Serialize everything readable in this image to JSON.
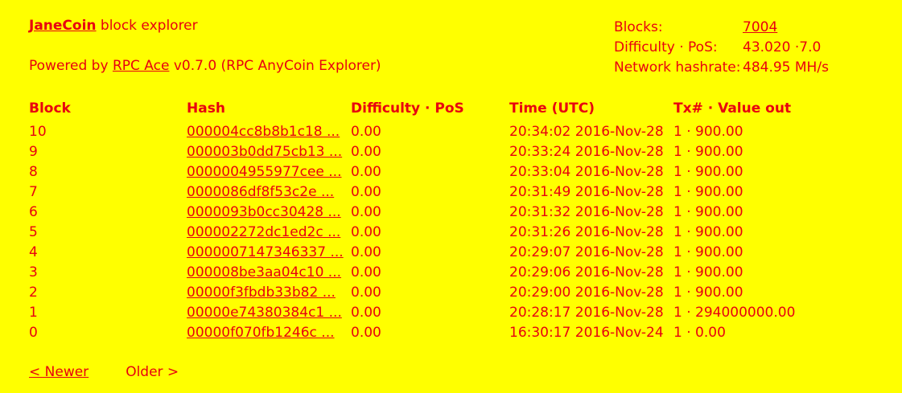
{
  "header": {
    "coin_name": "JaneCoin",
    "title_suffix": " block explorer",
    "powered_prefix": "Powered by ",
    "powered_link": "RPC Ace",
    "powered_suffix": " v0.7.0 (RPC AnyCoin Explorer)"
  },
  "stats": {
    "blocks_label": "Blocks:",
    "blocks_value": "7004",
    "difficulty_label": "Difficulty · PoS:",
    "difficulty_value": "43.020 ·7.0",
    "hashrate_label": "Network hashrate:",
    "hashrate_value": "484.95 MH/s"
  },
  "table": {
    "headers": {
      "block": "Block",
      "hash": "Hash",
      "difficulty": "Difficulty · PoS",
      "time": "Time (UTC)",
      "tx": "Tx# · Value out"
    },
    "rows": [
      {
        "block": "10",
        "hash": "000004cc8b8b1c18 ...",
        "difficulty": "0.00",
        "time": "20:34:02 2016-Nov-28",
        "tx": "1 · 900.00"
      },
      {
        "block": "9",
        "hash": "000003b0dd75cb13 ...",
        "difficulty": "0.00",
        "time": "20:33:24 2016-Nov-28",
        "tx": "1 · 900.00"
      },
      {
        "block": "8",
        "hash": "0000004955977cee ...",
        "difficulty": "0.00",
        "time": "20:33:04 2016-Nov-28",
        "tx": "1 · 900.00"
      },
      {
        "block": "7",
        "hash": "0000086df8f53c2e ...",
        "difficulty": "0.00",
        "time": "20:31:49 2016-Nov-28",
        "tx": "1 · 900.00"
      },
      {
        "block": "6",
        "hash": "0000093b0cc30428 ...",
        "difficulty": "0.00",
        "time": "20:31:32 2016-Nov-28",
        "tx": "1 · 900.00"
      },
      {
        "block": "5",
        "hash": "000002272dc1ed2c ...",
        "difficulty": "0.00",
        "time": "20:31:26 2016-Nov-28",
        "tx": "1 · 900.00"
      },
      {
        "block": "4",
        "hash": "0000007147346337 ...",
        "difficulty": "0.00",
        "time": "20:29:07 2016-Nov-28",
        "tx": "1 · 900.00"
      },
      {
        "block": "3",
        "hash": "000008be3aa04c10 ...",
        "difficulty": "0.00",
        "time": "20:29:06 2016-Nov-28",
        "tx": "1 · 900.00"
      },
      {
        "block": "2",
        "hash": "00000f3fbdb33b82 ...",
        "difficulty": "0.00",
        "time": "20:29:00 2016-Nov-28",
        "tx": "1 · 900.00"
      },
      {
        "block": "1",
        "hash": "00000e74380384c1 ...",
        "difficulty": "0.00",
        "time": "20:28:17 2016-Nov-28",
        "tx": "1 · 294000000.00"
      },
      {
        "block": "0",
        "hash": "00000f070fb1246c ...",
        "difficulty": "0.00",
        "time": "16:30:17 2016-Nov-24",
        "tx": "1 · 0.00"
      }
    ]
  },
  "pager": {
    "newer_label": "< Newer",
    "older_label": "Older >"
  },
  "colors": {
    "background": "#ffff00",
    "text": "#e8000f"
  }
}
